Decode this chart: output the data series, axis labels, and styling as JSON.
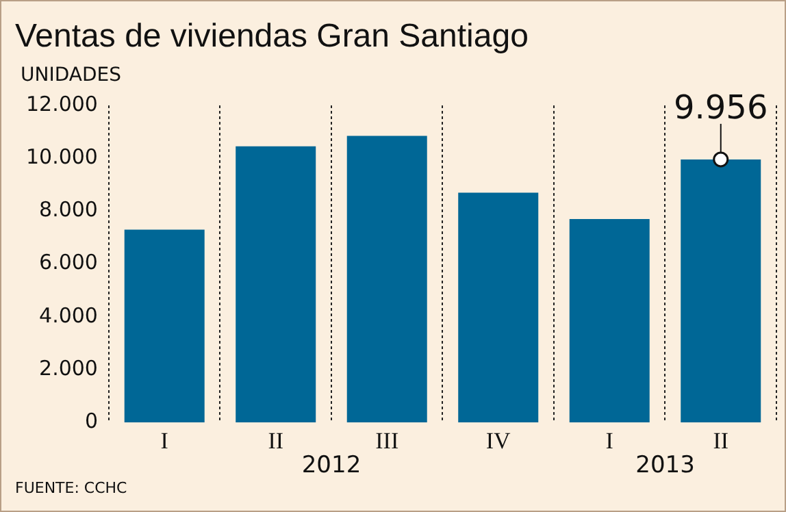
{
  "chart_data": {
    "type": "bar",
    "title": "Ventas de viviendas Gran Santiago",
    "ylabel": "UNIDADES",
    "categories": [
      "I",
      "II",
      "III",
      "IV",
      "I",
      "II"
    ],
    "values": [
      7300,
      10450,
      10850,
      8700,
      7700,
      9956
    ],
    "value_labels": [
      null,
      null,
      null,
      null,
      null,
      "9.956"
    ],
    "color": "#006796",
    "ylim": [
      0,
      12000
    ],
    "yticks": [
      {
        "value": 0,
        "label": "0"
      },
      {
        "value": 2000,
        "label": "2.000"
      },
      {
        "value": 4000,
        "label": "4.000"
      },
      {
        "value": 6000,
        "label": "6.000"
      },
      {
        "value": 8000,
        "label": "8.000"
      },
      {
        "value": 10000,
        "label": "10.000"
      },
      {
        "value": 12000,
        "label": "12.000"
      }
    ],
    "grid": "x",
    "annotations": [
      "2012",
      "2013",
      "FUENTE: CCHC"
    ]
  }
}
